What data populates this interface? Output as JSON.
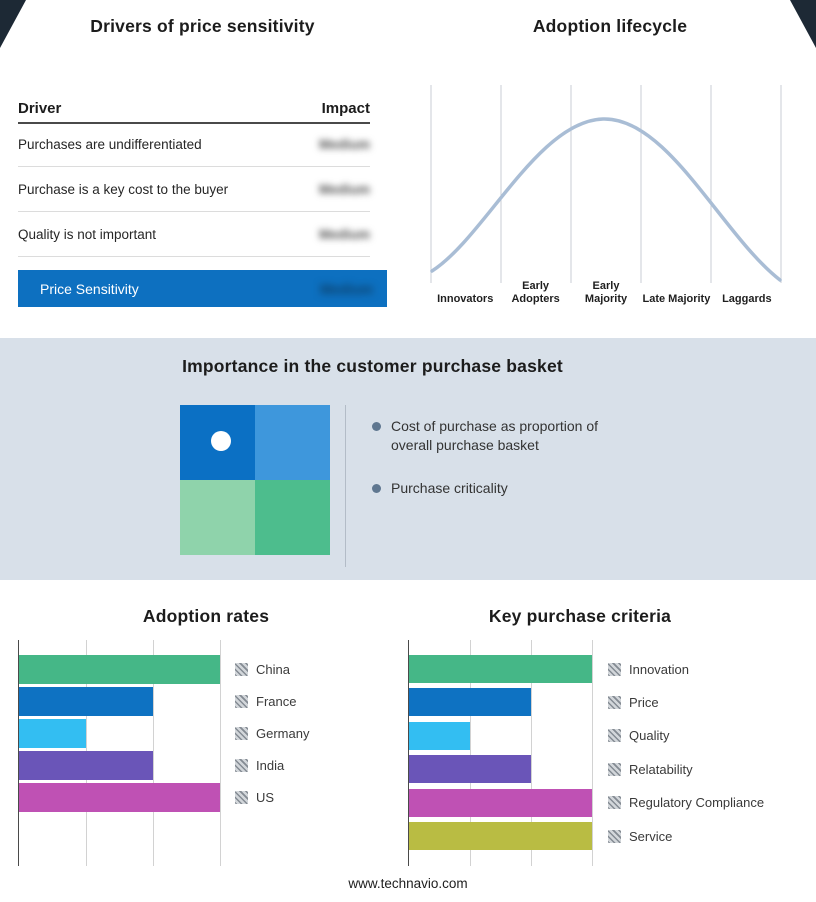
{
  "meta": {
    "footer": "www.technavio.com"
  },
  "drivers": {
    "title": "Drivers of price sensitivity",
    "col_driver": "Driver",
    "col_impact": "Impact",
    "rows": [
      {
        "driver": "Purchases are undifferentiated",
        "impact": "Medium"
      },
      {
        "driver": "Purchase is a key cost to the buyer",
        "impact": "Medium"
      },
      {
        "driver": "Quality is not important",
        "impact": "Medium"
      }
    ],
    "summary": {
      "label": "Price Sensitivity",
      "impact": "Medium"
    },
    "highlight_color": "#0d70c0"
  },
  "lifecycle": {
    "title": "Adoption lifecycle",
    "stages": [
      "Innovators",
      "Early Adopters",
      "Early Majority",
      "Late Majority",
      "Laggards"
    ],
    "curve_color": "#a9bdd5"
  },
  "basket": {
    "title": "Importance in the customer purchase basket",
    "bullets": [
      "Cost of purchase as proportion of overall purchase basket",
      "Purchase criticality"
    ],
    "matrix": {
      "top_left": "#0b70c4",
      "top_right": "#3e97dc",
      "bottom_left": "#8fd3ab",
      "bottom_right": "#4dbd8d"
    },
    "background": "#d8e0e9"
  },
  "chart_data": [
    {
      "type": "bar",
      "orientation": "horizontal",
      "title": "Adoption rates",
      "categories": [
        "China",
        "France",
        "Germany",
        "India",
        "US"
      ],
      "values": [
        3,
        2,
        1,
        2,
        3
      ],
      "xlim": [
        0,
        3
      ],
      "grid": true,
      "legend_position": "right",
      "colors": [
        "#45b787",
        "#0e72c2",
        "#33bef2",
        "#6a55b8",
        "#bf51b4"
      ]
    },
    {
      "type": "bar",
      "orientation": "horizontal",
      "title": "Key purchase criteria",
      "categories": [
        "Innovation",
        "Price",
        "Quality",
        "Relatability",
        "Regulatory Compliance",
        "Service"
      ],
      "values": [
        3,
        2,
        1,
        2,
        3,
        3
      ],
      "xlim": [
        0,
        3
      ],
      "grid": true,
      "legend_position": "right",
      "colors": [
        "#45b787",
        "#0e72c2",
        "#33bef2",
        "#6a55b8",
        "#bf51b4",
        "#b9bc43"
      ]
    }
  ]
}
